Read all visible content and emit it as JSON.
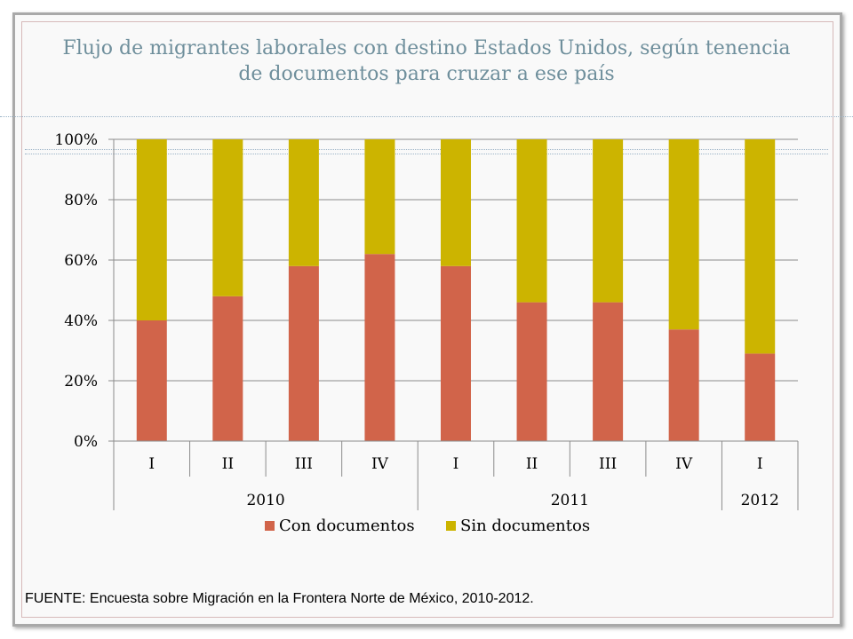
{
  "chart_data": {
    "type": "bar",
    "stacked": true,
    "normalized": true,
    "title": "Flujo de migrantes laborales con destino Estados Unidos, según tenencia de documentos para cruzar a ese país",
    "categories": [
      "I",
      "II",
      "III",
      "IV",
      "I",
      "II",
      "III",
      "IV",
      "I"
    ],
    "groups": [
      {
        "label": "2010",
        "span": 4
      },
      {
        "label": "2011",
        "span": 4
      },
      {
        "label": "2012",
        "span": 1
      }
    ],
    "series": [
      {
        "name": "Con documentos",
        "color": "#d1644a",
        "values": [
          40,
          48,
          58,
          62,
          58,
          46,
          46,
          37,
          29
        ]
      },
      {
        "name": "Sin documentos",
        "color": "#ccb400",
        "values": [
          60,
          52,
          42,
          38,
          42,
          54,
          54,
          63,
          71
        ]
      }
    ],
    "ylim": [
      0,
      100
    ],
    "yticks": [
      0,
      20,
      40,
      60,
      80,
      100
    ],
    "ytick_labels": [
      "0%",
      "20%",
      "40%",
      "60%",
      "80%",
      "100%"
    ],
    "grid": true,
    "legend": "bottom",
    "xlabel": "",
    "ylabel": ""
  },
  "source": "FUENTE: Encuesta sobre Migración en la Frontera Norte de México, 2010-2012."
}
